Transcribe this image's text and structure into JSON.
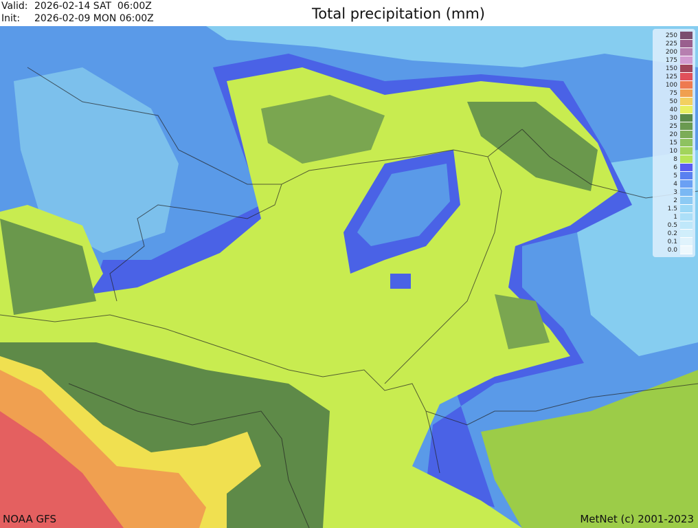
{
  "header": {
    "valid_label": "Valid:",
    "valid_value": "2026-02-14 SAT  06:00Z",
    "init_label": "Init:",
    "init_value": "2026-02-09 MON 06:00Z",
    "title": "Total precipitation (mm)"
  },
  "legend": {
    "labels": [
      "250",
      "225",
      "200",
      "175",
      "150",
      "125",
      "100",
      "75",
      "50",
      "40",
      "30",
      "25",
      "20",
      "15",
      "10",
      "8",
      "6",
      "5",
      "4",
      "3",
      "2",
      "1.5",
      "1",
      "0.5",
      "0.2",
      "0.1",
      "0.0"
    ],
    "colors": [
      "#7a4f6e",
      "#9a5f8e",
      "#b77fb0",
      "#d29ad0",
      "#a0455a",
      "#e0505a",
      "#ee7a50",
      "#f0a050",
      "#f3d060",
      "#e8ef60",
      "#5a8a4a",
      "#6a9a50",
      "#7cac58",
      "#8ec260",
      "#a2d45c",
      "#b6e458",
      "#5a5cf0",
      "#5a80f0",
      "#6aa0f4",
      "#7ab8f4",
      "#8ccaf4",
      "#9cd8f6",
      "#acdff8",
      "#c0e8fa",
      "#d0eefb",
      "#e0f3fc",
      "#eef8fd"
    ]
  },
  "map": {
    "colors": {
      "light_blue": "#7fc6ee",
      "blue": "#5a9ae8",
      "dark_blue": "#4a62e6",
      "yellow_green": "#c8ec50",
      "green": "#9ccc48",
      "dark_green": "#5e8a48",
      "yellow": "#f0e050",
      "orange": "#f0a050",
      "red": "#e46060"
    }
  },
  "footer": {
    "source": "NOAA GFS",
    "credit": "MetNet (c) 2001-2023"
  }
}
